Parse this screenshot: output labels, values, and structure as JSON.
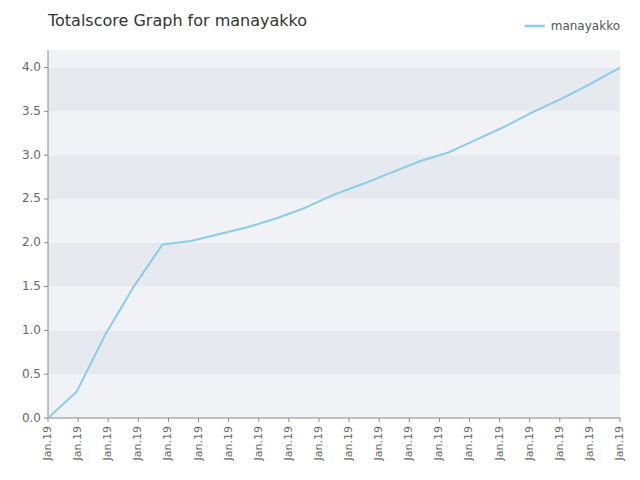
{
  "chart_data": {
    "type": "line",
    "title": "Totalscore Graph for manayakko",
    "x": [
      0,
      1,
      2,
      3,
      4,
      5,
      6,
      7,
      8,
      9,
      10,
      11,
      12,
      13,
      14,
      15,
      16,
      17,
      18,
      19,
      20
    ],
    "series": [
      {
        "name": "manayakko",
        "color": "#87CEEB",
        "values": [
          0.0,
          0.3,
          0.95,
          1.5,
          1.98,
          2.02,
          2.1,
          2.18,
          2.28,
          2.4,
          2.55,
          2.67,
          2.8,
          2.93,
          3.03,
          3.18,
          3.33,
          3.5,
          3.65,
          3.82,
          4.0
        ]
      }
    ],
    "xlim": [
      0,
      20
    ],
    "xticks": [
      {
        "value": 0,
        "label": "Jan.19"
      },
      {
        "value": 1.0526315789473684,
        "label": "Jan.19"
      },
      {
        "value": 2.1052631578947367,
        "label": "Jan.19"
      },
      {
        "value": 3.1578947368421053,
        "label": "Jan.19"
      },
      {
        "value": 4.2105263157894735,
        "label": "Jan.19"
      },
      {
        "value": 5.263157894736842,
        "label": "Jan.19"
      },
      {
        "value": 6.315789473684211,
        "label": "Jan.19"
      },
      {
        "value": 7.368421052631579,
        "label": "Jan.19"
      },
      {
        "value": 8.421052631578947,
        "label": "Jan.19"
      },
      {
        "value": 9.473684210526315,
        "label": "Jan.19"
      },
      {
        "value": 10.526315789473683,
        "label": "Jan.19"
      },
      {
        "value": 11.578947368421051,
        "label": "Jan.19"
      },
      {
        "value": 12.631578947368421,
        "label": "Jan.19"
      },
      {
        "value": 13.68421052631579,
        "label": "Jan.19"
      },
      {
        "value": 14.736842105263158,
        "label": "Jan.19"
      },
      {
        "value": 15.789473684210526,
        "label": "Jan.19"
      },
      {
        "value": 16.842105263157894,
        "label": "Jan.19"
      },
      {
        "value": 17.894736842105264,
        "label": "Jan.19"
      },
      {
        "value": 18.94736842105263,
        "label": "Jan.19"
      },
      {
        "value": 20,
        "label": "Jan.19"
      }
    ],
    "ylim": [
      0.0,
      4.2
    ],
    "yticks": [
      {
        "value": 0,
        "label": "0.0"
      },
      0.5,
      {
        "value": 1,
        "label": "1.0"
      },
      1.5,
      {
        "value": 2,
        "label": "2.0"
      },
      2.5,
      {
        "value": 3,
        "label": "3.0"
      },
      3.5,
      {
        "value": 4,
        "label": "4.0"
      }
    ],
    "grid": false,
    "legend": "top-right"
  }
}
